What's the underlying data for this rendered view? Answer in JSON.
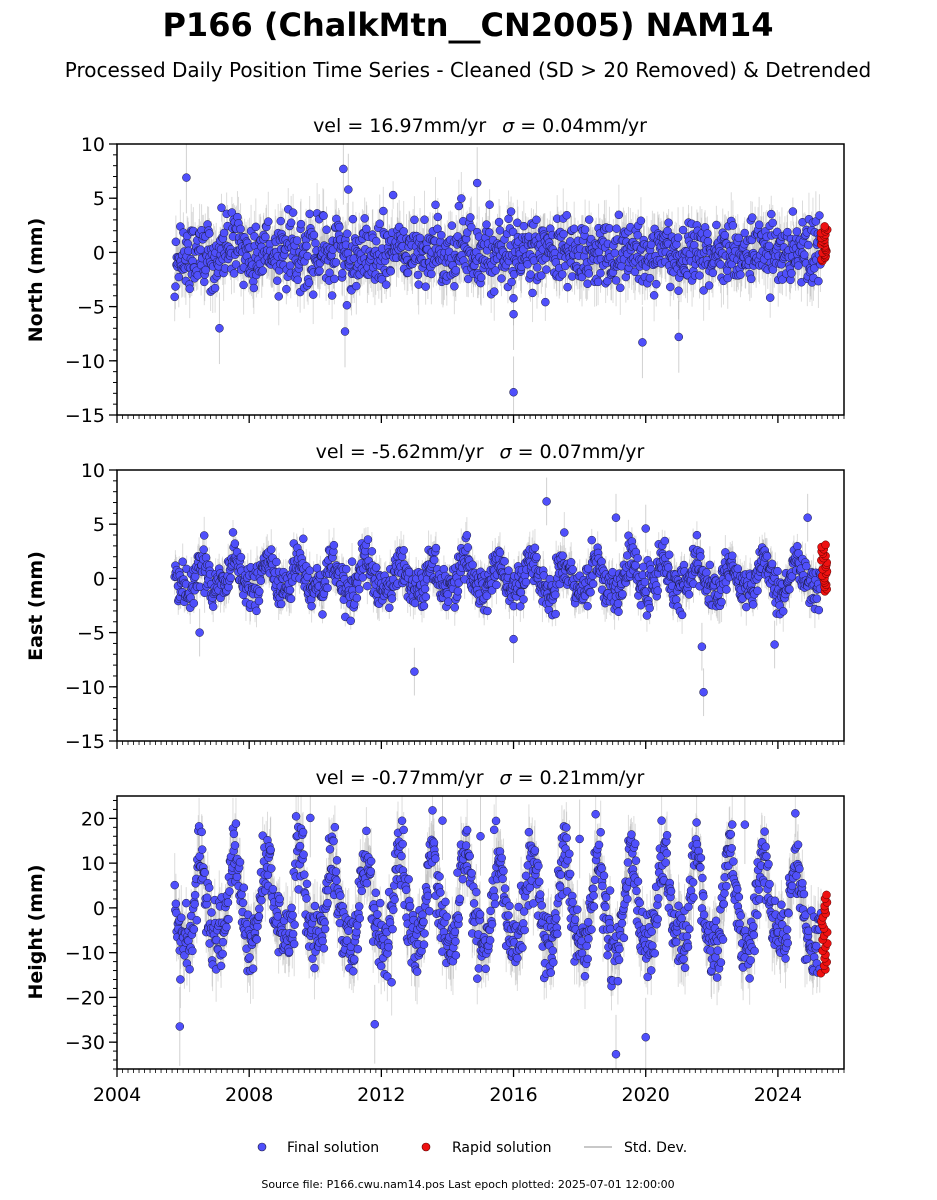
{
  "title": "P166 (ChalkMtn__CN2005) NAM14",
  "subtitle": "Processed Daily Position Time Series - Cleaned (SD > 20 Removed) & Detrended",
  "legend": {
    "final": "Final solution",
    "rapid": "Rapid solution",
    "std": "Std. Dev."
  },
  "source_note": "Source file: P166.cwu.nam14.pos  Last epoch plotted: 2025-07-01 12:00:00",
  "colors": {
    "final": "#4f4ffb",
    "rapid": "#ee1111",
    "std": "#9a9a9a",
    "edge": "#1a1a3a"
  },
  "chart_data": [
    {
      "type": "scatter",
      "component": "north",
      "title_vel": "vel = 16.97mm/yr",
      "title_sigma": "= 0.04mm/yr",
      "ylabel": "North (mm)",
      "xlim": [
        2004,
        2026
      ],
      "ylim": [
        -15,
        10
      ],
      "yticks": [
        10,
        5,
        0,
        -5,
        -10,
        -15
      ],
      "ytick_labels": [
        "10",
        "5",
        "0",
        "−5",
        "−10",
        "−15"
      ],
      "final_x_range": [
        2005.75,
        2025.3
      ],
      "rapid_x_range": [
        2025.3,
        2025.5
      ],
      "noise_sd": 1.5,
      "seasonal_amplitude": 0.3,
      "final_outliers": [
        [
          2006.1,
          6.9
        ],
        [
          2010.85,
          7.7
        ],
        [
          2011.0,
          5.8
        ],
        [
          2007.1,
          -7.0
        ],
        [
          2010.9,
          -7.3
        ],
        [
          2016.0,
          -12.9
        ],
        [
          2019.9,
          -8.3
        ],
        [
          2021.0,
          -7.8
        ],
        [
          2014.9,
          6.4
        ],
        [
          2016.0,
          -5.7
        ]
      ],
      "rapid_range": [
        -0.8,
        2.4
      ]
    },
    {
      "type": "scatter",
      "component": "east",
      "title_vel": "vel = -5.62mm/yr",
      "title_sigma": "= 0.07mm/yr",
      "ylabel": "East (mm)",
      "xlim": [
        2004,
        2026
      ],
      "ylim": [
        -15,
        10
      ],
      "yticks": [
        10,
        5,
        0,
        -5,
        -10,
        -15
      ],
      "ytick_labels": [
        "10",
        "5",
        "0",
        "−5",
        "−10",
        "−15"
      ],
      "final_x_range": [
        2005.75,
        2025.3
      ],
      "rapid_x_range": [
        2025.3,
        2025.5
      ],
      "noise_sd": 1.0,
      "seasonal_amplitude": 1.4,
      "final_outliers": [
        [
          2013.0,
          -8.6
        ],
        [
          2021.75,
          -10.5
        ],
        [
          2021.7,
          -6.3
        ],
        [
          2017.0,
          7.1
        ],
        [
          2019.1,
          5.6
        ],
        [
          2020.0,
          4.6
        ],
        [
          2024.9,
          5.6
        ],
        [
          2006.5,
          -5.0
        ],
        [
          2016.0,
          -5.6
        ],
        [
          2023.9,
          -6.1
        ]
      ],
      "rapid_range": [
        -1.2,
        3.1
      ]
    },
    {
      "type": "scatter",
      "component": "height",
      "title_vel": "vel = -0.77mm/yr",
      "title_sigma": "= 0.21mm/yr",
      "ylabel": "Height (mm)",
      "xlim": [
        2004,
        2026
      ],
      "ylim": [
        -36,
        25
      ],
      "yticks": [
        20,
        10,
        0,
        -10,
        -20,
        -30
      ],
      "ytick_labels": [
        "20",
        "10",
        "0",
        "−10",
        "−20",
        "−30"
      ],
      "xticks": [
        2004,
        2008,
        2012,
        2016,
        2020,
        2024
      ],
      "xtick_labels": [
        "2004",
        "2008",
        "2012",
        "2016",
        "2020",
        "2024"
      ],
      "final_x_range": [
        2005.75,
        2025.3
      ],
      "rapid_x_range": [
        2025.3,
        2025.5
      ],
      "noise_sd": 4.0,
      "seasonal_amplitude": 10.0,
      "final_outliers": [
        [
          2009.85,
          20.1
        ],
        [
          2013.85,
          19.5
        ],
        [
          2019.1,
          -32.7
        ],
        [
          2020.0,
          -28.9
        ],
        [
          2023.0,
          18.6
        ],
        [
          2011.8,
          -26.0
        ],
        [
          2005.9,
          -26.5
        ],
        [
          2015.0,
          16.0
        ],
        [
          2018.0,
          15.4
        ]
      ],
      "rapid_range": [
        -14.6,
        2.9
      ]
    }
  ]
}
